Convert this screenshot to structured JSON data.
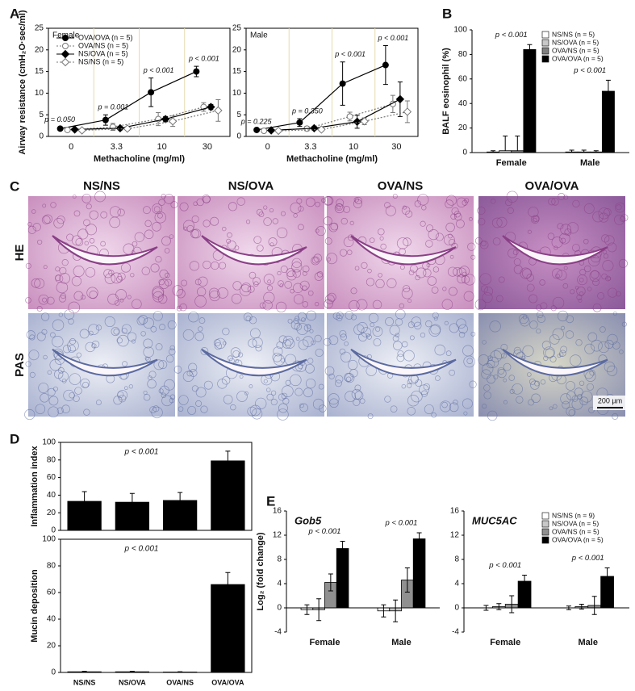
{
  "panel_labels": [
    "A",
    "B",
    "C",
    "D",
    "E"
  ],
  "chart_data": [
    {
      "type": "line",
      "title": "Female",
      "x_label": "Methacholine (mg/ml)",
      "y_label": "Airway resistance (cmH₂O·sec/ml)",
      "categories": [
        "0",
        "3.3",
        "10",
        "30"
      ],
      "ylim": [
        0,
        25
      ],
      "yticks": [
        0,
        5,
        10,
        15,
        20,
        25
      ],
      "frame": true,
      "legend": "upper left",
      "annotations": [
        "p = 0.050",
        "p = 0.001",
        "p < 0.001",
        "p < 0.001"
      ],
      "series": [
        {
          "name": "OVA/OVA (n = 5)",
          "color": "#000000",
          "marker": "circle",
          "filled": true,
          "line": "solid",
          "values": [
            1.8,
            3.8,
            10.2,
            15.0
          ],
          "errors": [
            0.3,
            1.2,
            3.3,
            1.2
          ]
        },
        {
          "name": "OVA/NS (n = 5)",
          "color": "#777777",
          "marker": "circle",
          "filled": false,
          "line": "dotted",
          "values": [
            1.5,
            2.2,
            4.0,
            6.8
          ],
          "errors": [
            0.3,
            0.8,
            1.5,
            1.0
          ]
        },
        {
          "name": "NS/OVA (n = 5)",
          "color": "#000000",
          "marker": "diamond",
          "filled": true,
          "line": "solid",
          "values": [
            1.6,
            1.9,
            4.0,
            6.8
          ],
          "errors": [
            0.2,
            0.4,
            0.6,
            0.6
          ]
        },
        {
          "name": "NS/NS (n = 5)",
          "color": "#777777",
          "marker": "diamond",
          "filled": false,
          "line": "dotted",
          "values": [
            1.4,
            1.8,
            3.5,
            6.0
          ],
          "errors": [
            0.2,
            0.4,
            1.2,
            2.5
          ]
        }
      ]
    },
    {
      "type": "line",
      "title": "Male",
      "x_label": "Methacholine (mg/ml)",
      "categories": [
        "0",
        "3.3",
        "10",
        "30"
      ],
      "ylim": [
        0,
        25
      ],
      "yticks": [
        0,
        5,
        10,
        15,
        20,
        25
      ],
      "frame": true,
      "annotations": [
        "p = 0.225",
        "p = 0.350",
        "p < 0.001",
        "p < 0.001"
      ],
      "series": [
        {
          "color": "#000000",
          "marker": "circle",
          "filled": true,
          "line": "solid",
          "values": [
            1.5,
            3.2,
            12.2,
            16.5
          ],
          "errors": [
            0.2,
            0.9,
            5.0,
            4.5
          ]
        },
        {
          "color": "#777777",
          "marker": "circle",
          "filled": false,
          "line": "dotted",
          "values": [
            1.3,
            1.8,
            4.6,
            7.5
          ],
          "errors": [
            0.2,
            0.5,
            1.0,
            2.0
          ]
        },
        {
          "color": "#000000",
          "marker": "diamond",
          "filled": true,
          "line": "solid",
          "values": [
            1.4,
            1.9,
            3.4,
            8.6
          ],
          "errors": [
            0.2,
            0.4,
            1.5,
            4.0
          ]
        },
        {
          "color": "#777777",
          "marker": "diamond",
          "filled": false,
          "line": "dotted",
          "values": [
            1.3,
            1.6,
            3.5,
            5.7
          ],
          "errors": [
            0.2,
            0.4,
            0.8,
            2.5
          ]
        }
      ]
    },
    {
      "type": "bar",
      "y_label": "BALF eosinophil (%)",
      "categories": [
        "Female",
        "Male"
      ],
      "ylim": [
        0,
        100
      ],
      "yticks": [
        0,
        20,
        40,
        60,
        80,
        100
      ],
      "legend": "upper right",
      "error_bars": "upper",
      "annotations": [
        "p < 0.001",
        "p < 0.001"
      ],
      "series": [
        {
          "name": "NS/NS (n = 5)",
          "color": "#ffffff",
          "values": [
            0.5,
            0.5
          ],
          "errors": [
            1.0,
            1.5
          ]
        },
        {
          "name": "NS/OVA (n = 5)",
          "color": "#c8c8c8",
          "values": [
            1.5,
            0.5
          ],
          "errors": [
            12,
            1.5
          ]
        },
        {
          "name": "OVA/NS (n = 5)",
          "color": "#808080",
          "values": [
            1.5,
            0.5
          ],
          "errors": [
            12,
            1.0
          ]
        },
        {
          "name": "OVA/OVA (n = 5)",
          "color": "#000000",
          "values": [
            84,
            50
          ],
          "errors": [
            4,
            9
          ]
        }
      ]
    },
    {
      "type": "bar",
      "y_label": "Inflammation index",
      "categories": [
        null,
        null,
        null,
        null
      ],
      "values": [
        33,
        32,
        34,
        79
      ],
      "errors": [
        11,
        10,
        9,
        11
      ],
      "color": "#000000",
      "ylim": [
        0,
        100
      ],
      "yticks": [
        0,
        20,
        40,
        60,
        80,
        100
      ],
      "frame": true,
      "error_bars": "upper",
      "annotation": "p < 0.001"
    },
    {
      "type": "bar",
      "y_label": "Mucin deposition",
      "categories": [
        "NS/NS",
        "NS/OVA",
        "OVA/NS",
        "OVA/OVA"
      ],
      "values": [
        0.5,
        0.5,
        0.3,
        66
      ],
      "errors": [
        0.3,
        0.3,
        0.2,
        9
      ],
      "color": "#000000",
      "ylim": [
        0,
        100
      ],
      "yticks": [
        0,
        20,
        40,
        60,
        80,
        100
      ],
      "frame": true,
      "error_bars": "upper",
      "annotation": "p < 0.001"
    },
    {
      "type": "bar",
      "title": "Gob5",
      "y_label": "Log₂ (fold change)",
      "categories": [
        "Female",
        "Male"
      ],
      "ylim": [
        -4,
        16
      ],
      "yticks": [
        -4,
        0,
        4,
        8,
        12,
        16
      ],
      "error_bars": "both",
      "annotations": [
        "p < 0.001",
        "p < 0.001"
      ],
      "series": [
        {
          "color": "#ffffff",
          "values": [
            -0.3,
            -0.5
          ],
          "errors": [
            0.8,
            1.0
          ]
        },
        {
          "color": "#c8c8c8",
          "values": [
            -0.3,
            -0.5
          ],
          "errors": [
            1.8,
            1.8
          ]
        },
        {
          "color": "#909090",
          "values": [
            4.2,
            4.6
          ],
          "errors": [
            1.4,
            2.0
          ]
        },
        {
          "color": "#000000",
          "values": [
            9.8,
            11.4
          ],
          "errors": [
            1.2,
            1.0
          ]
        }
      ]
    },
    {
      "type": "bar",
      "title": "MUC5AC",
      "categories": [
        "Female",
        "Male"
      ],
      "ylim": [
        -4,
        16
      ],
      "yticks": [
        -4,
        0,
        4,
        8,
        12,
        16
      ],
      "legend": "upper right",
      "error_bars": "both",
      "annotations": [
        "p < 0.001",
        "p < 0.001"
      ],
      "series": [
        {
          "name": "NS/NS (n = 9)",
          "color": "#ffffff",
          "values": [
            0,
            0
          ],
          "errors": [
            0.4,
            0.3
          ]
        },
        {
          "name": "NS/OVA (n = 5)",
          "color": "#c8c8c8",
          "values": [
            0.2,
            0.2
          ],
          "errors": [
            0.5,
            0.4
          ]
        },
        {
          "name": "OVA/NS (n = 5)",
          "color": "#909090",
          "values": [
            0.6,
            0.4
          ],
          "errors": [
            1.4,
            1.5
          ]
        },
        {
          "name": "OVA/OVA (n = 5)",
          "color": "#000000",
          "values": [
            4.4,
            5.2
          ],
          "errors": [
            1.0,
            1.4
          ]
        }
      ]
    }
  ],
  "histology": {
    "columns": [
      "NS/NS",
      "NS/OVA",
      "OVA/NS",
      "OVA/OVA"
    ],
    "rows": [
      "HE",
      "PAS"
    ],
    "scale_bar": "200 µm"
  }
}
